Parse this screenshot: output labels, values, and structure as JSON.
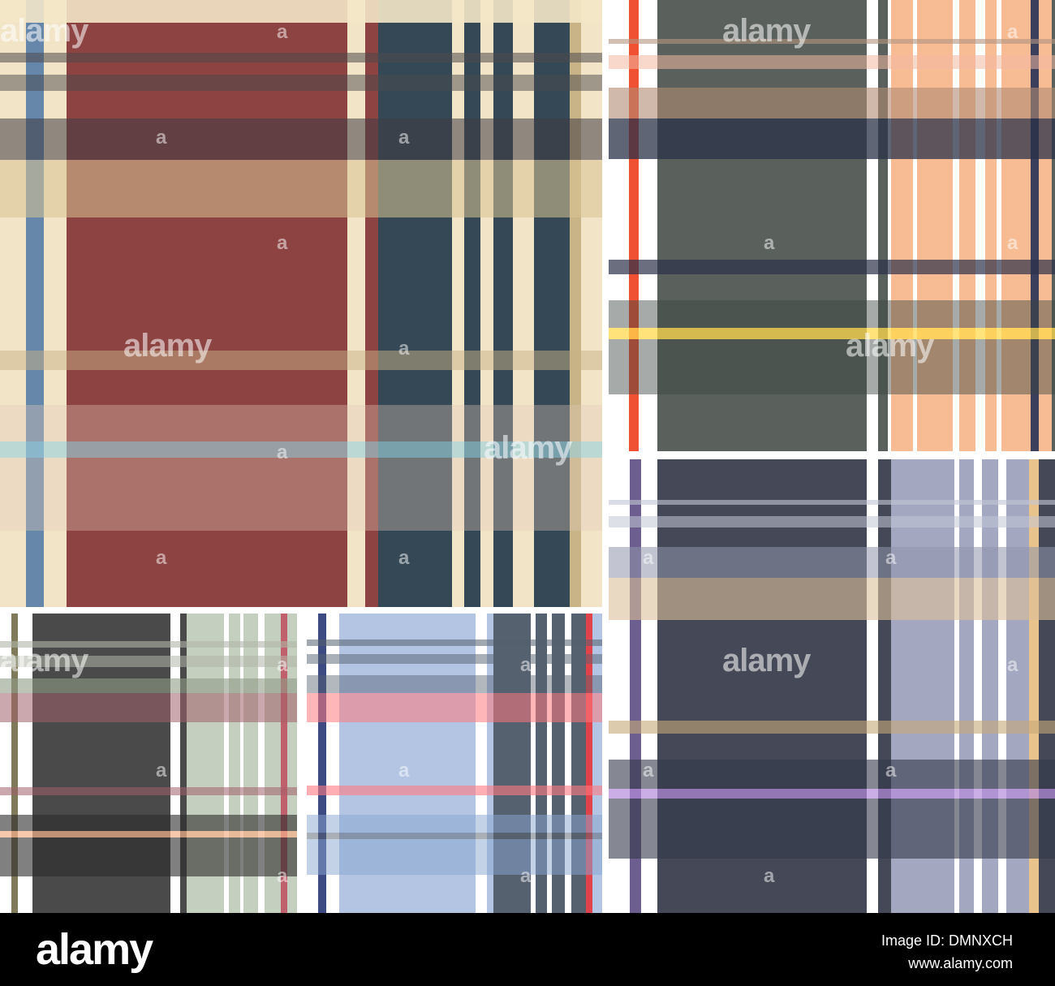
{
  "watermark": {
    "logo": "alamy",
    "glyph": "a"
  },
  "footer": {
    "logo": "alamy",
    "image_id": "Image ID: DMNXCH",
    "url": "www.alamy.com"
  },
  "panels": [
    {
      "name": "red-tartan",
      "bg": "#8c4341",
      "stripes": [
        {
          "d": "h",
          "a": 0,
          "b": 28,
          "c": "#f3e7c8",
          "o": 0.9
        },
        {
          "d": "h",
          "a": 65,
          "b": 77,
          "c": "#4e4a4c",
          "o": 0.55
        },
        {
          "d": "h",
          "a": 92,
          "b": 112,
          "c": "#4a4a4e",
          "o": 0.5
        },
        {
          "d": "h",
          "a": 146,
          "b": 197,
          "c": "#3f3c44",
          "o": 0.55
        },
        {
          "d": "h",
          "a": 197,
          "b": 268,
          "c": "#d8c493",
          "o": 0.55
        },
        {
          "d": "h",
          "a": 432,
          "b": 456,
          "c": "#c7b287",
          "o": 0.5
        },
        {
          "d": "h",
          "a": 499,
          "b": 544,
          "c": "#e1ccb9",
          "o": 0.35
        },
        {
          "d": "h",
          "a": 544,
          "b": 564,
          "c": "#9ed1dc",
          "o": 0.65
        },
        {
          "d": "h",
          "a": 564,
          "b": 654,
          "c": "#e1ccb9",
          "o": 0.35
        },
        {
          "d": "v",
          "a": 0,
          "b": 32,
          "c": "#f2e4c6",
          "o": 1
        },
        {
          "d": "v",
          "a": 32,
          "b": 54,
          "c": "#6787aa",
          "o": 1
        },
        {
          "d": "v",
          "a": 54,
          "b": 82,
          "c": "#f2e4c6",
          "o": 1
        },
        {
          "d": "v",
          "a": 428,
          "b": 450,
          "c": "#f2e4c6",
          "o": 1
        },
        {
          "d": "v",
          "a": 466,
          "b": 557,
          "c": "#354855",
          "o": 1
        },
        {
          "d": "v",
          "a": 557,
          "b": 572,
          "c": "#f2e4c6",
          "o": 1
        },
        {
          "d": "v",
          "a": 572,
          "b": 592,
          "c": "#354855",
          "o": 1
        },
        {
          "d": "v",
          "a": 592,
          "b": 608,
          "c": "#f2e4c6",
          "o": 1
        },
        {
          "d": "v",
          "a": 608,
          "b": 632,
          "c": "#354855",
          "o": 1
        },
        {
          "d": "v",
          "a": 632,
          "b": 658,
          "c": "#f2e4c6",
          "o": 1
        },
        {
          "d": "v",
          "a": 658,
          "b": 702,
          "c": "#354855",
          "o": 1
        },
        {
          "d": "v",
          "a": 702,
          "b": 716,
          "c": "#c8b487",
          "o": 1
        },
        {
          "d": "v",
          "a": 716,
          "b": 742,
          "c": "#f2e4c6",
          "o": 1
        }
      ]
    },
    {
      "name": "green-peach-tartan",
      "bg": "#5a615c",
      "stripes": [
        {
          "d": "v",
          "a": 0,
          "b": 25,
          "c": "#ffffff",
          "o": 1
        },
        {
          "d": "v",
          "a": 25,
          "b": 37,
          "c": "#f05133",
          "o": 1
        },
        {
          "d": "v",
          "a": 37,
          "b": 60,
          "c": "#ffffff",
          "o": 1
        },
        {
          "d": "v",
          "a": 318,
          "b": 332,
          "c": "#ffffff",
          "o": 1
        },
        {
          "d": "v",
          "a": 344,
          "b": 348,
          "c": "#ffffff",
          "o": 1
        },
        {
          "d": "v",
          "a": 348,
          "b": 546,
          "c": "#f8bc94",
          "o": 1
        },
        {
          "d": "v",
          "a": 375,
          "b": 380,
          "c": "#ffffff",
          "o": 1
        },
        {
          "d": "v",
          "a": 424,
          "b": 432,
          "c": "#ffffff",
          "o": 1
        },
        {
          "d": "v",
          "a": 452,
          "b": 464,
          "c": "#ffffff",
          "o": 1
        },
        {
          "d": "v",
          "a": 478,
          "b": 484,
          "c": "#ffffff",
          "o": 1
        },
        {
          "d": "v",
          "a": 520,
          "b": 530,
          "c": "#3c3f5c",
          "o": 1
        },
        {
          "d": "h",
          "a": 48,
          "b": 54,
          "c": "#b29580",
          "o": 0.6
        },
        {
          "d": "h",
          "a": 68,
          "b": 85,
          "c": "#f0b8a0",
          "o": 0.55
        },
        {
          "d": "h",
          "a": 108,
          "b": 146,
          "c": "#b08a72",
          "o": 0.6
        },
        {
          "d": "h",
          "a": 146,
          "b": 196,
          "c": "#2b3148",
          "o": 0.75
        },
        {
          "d": "h",
          "a": 320,
          "b": 338,
          "c": "#2b3148",
          "o": 0.7
        },
        {
          "d": "h",
          "a": 370,
          "b": 404,
          "c": "#3a4540",
          "o": 0.45
        },
        {
          "d": "h",
          "a": 404,
          "b": 418,
          "c": "#ffd84c",
          "o": 0.75
        },
        {
          "d": "h",
          "a": 418,
          "b": 486,
          "c": "#3a4540",
          "o": 0.45
        }
      ]
    },
    {
      "name": "navy-lavender-tartan",
      "bg": "#454957",
      "stripes": [
        {
          "d": "v",
          "a": 0,
          "b": 26,
          "c": "#ffffff",
          "o": 1
        },
        {
          "d": "v",
          "a": 26,
          "b": 40,
          "c": "#6c5f8f",
          "o": 1
        },
        {
          "d": "v",
          "a": 40,
          "b": 60,
          "c": "#ffffff",
          "o": 1
        },
        {
          "d": "v",
          "a": 318,
          "b": 332,
          "c": "#ffffff",
          "o": 1
        },
        {
          "d": "v",
          "a": 348,
          "b": 528,
          "c": "#a3a7c0",
          "o": 1
        },
        {
          "d": "v",
          "a": 426,
          "b": 432,
          "c": "#ffffff",
          "o": 1
        },
        {
          "d": "v",
          "a": 450,
          "b": 460,
          "c": "#ffffff",
          "o": 1
        },
        {
          "d": "v",
          "a": 480,
          "b": 490,
          "c": "#ffffff",
          "o": 1
        },
        {
          "d": "v",
          "a": 518,
          "b": 530,
          "c": "#e8c48c",
          "o": 1
        },
        {
          "d": "h",
          "a": 50,
          "b": 56,
          "c": "#c3c7d6",
          "o": 0.6
        },
        {
          "d": "h",
          "a": 70,
          "b": 84,
          "c": "#c3c7d6",
          "o": 0.55
        },
        {
          "d": "h",
          "a": 108,
          "b": 146,
          "c": "#8f93ab",
          "o": 0.55
        },
        {
          "d": "h",
          "a": 146,
          "b": 198,
          "c": "#dcc09a",
          "o": 0.6
        },
        {
          "d": "h",
          "a": 322,
          "b": 338,
          "c": "#c7a878",
          "o": 0.6
        },
        {
          "d": "h",
          "a": 370,
          "b": 406,
          "c": "#34384a",
          "o": 0.6
        },
        {
          "d": "h",
          "a": 406,
          "b": 418,
          "c": "#b58bdc",
          "o": 0.7
        },
        {
          "d": "h",
          "a": 418,
          "b": 492,
          "c": "#34384a",
          "o": 0.6
        }
      ]
    },
    {
      "name": "charcoal-sage-tartan",
      "bg": "#4a4a4a",
      "stripes": [
        {
          "d": "v",
          "a": 0,
          "b": 14,
          "c": "#ffffff",
          "o": 1
        },
        {
          "d": "v",
          "a": 14,
          "b": 22,
          "c": "#7f7b5a",
          "o": 1
        },
        {
          "d": "v",
          "a": 22,
          "b": 40,
          "c": "#ffffff",
          "o": 1
        },
        {
          "d": "v",
          "a": 210,
          "b": 222,
          "c": "#ffffff",
          "o": 1
        },
        {
          "d": "v",
          "a": 230,
          "b": 366,
          "c": "#c5cfbf",
          "o": 1
        },
        {
          "d": "v",
          "a": 276,
          "b": 282,
          "c": "#ffffff",
          "o": 1
        },
        {
          "d": "v",
          "a": 296,
          "b": 300,
          "c": "#ffffff",
          "o": 1
        },
        {
          "d": "v",
          "a": 318,
          "b": 326,
          "c": "#ffffff",
          "o": 1
        },
        {
          "d": "v",
          "a": 346,
          "b": 354,
          "c": "#c0606c",
          "o": 1
        },
        {
          "d": "h",
          "a": 34,
          "b": 42,
          "c": "#b0b6a8",
          "o": 0.6
        },
        {
          "d": "h",
          "a": 52,
          "b": 66,
          "c": "#b0b6a8",
          "o": 0.55
        },
        {
          "d": "h",
          "a": 80,
          "b": 98,
          "c": "#8f9c88",
          "o": 0.6
        },
        {
          "d": "h",
          "a": 98,
          "b": 134,
          "c": "#a0606a",
          "o": 0.55
        },
        {
          "d": "h",
          "a": 214,
          "b": 224,
          "c": "#a0606a",
          "o": 0.55
        },
        {
          "d": "h",
          "a": 248,
          "b": 268,
          "c": "#2b2b2b",
          "o": 0.6
        },
        {
          "d": "h",
          "a": 268,
          "b": 276,
          "c": "#f5b08a",
          "o": 0.7
        },
        {
          "d": "h",
          "a": 276,
          "b": 324,
          "c": "#2b2b2b",
          "o": 0.6
        }
      ]
    },
    {
      "name": "blue-slate-tartan",
      "bg": "#b3c5e3",
      "stripes": [
        {
          "d": "v",
          "a": 0,
          "b": 14,
          "c": "#ffffff",
          "o": 1
        },
        {
          "d": "v",
          "a": 14,
          "b": 24,
          "c": "#3e4a82",
          "o": 1
        },
        {
          "d": "v",
          "a": 24,
          "b": 40,
          "c": "#ffffff",
          "o": 1
        },
        {
          "d": "v",
          "a": 208,
          "b": 222,
          "c": "#ffffff",
          "o": 1
        },
        {
          "d": "v",
          "a": 230,
          "b": 350,
          "c": "#566170",
          "o": 1
        },
        {
          "d": "v",
          "a": 276,
          "b": 282,
          "c": "#ffffff",
          "o": 1
        },
        {
          "d": "v",
          "a": 296,
          "b": 302,
          "c": "#ffffff",
          "o": 1
        },
        {
          "d": "v",
          "a": 318,
          "b": 326,
          "c": "#ffffff",
          "o": 1
        },
        {
          "d": "v",
          "a": 344,
          "b": 352,
          "c": "#e0444a",
          "o": 1
        },
        {
          "d": "h",
          "a": 32,
          "b": 40,
          "c": "#566170",
          "o": 0.55
        },
        {
          "d": "h",
          "a": 50,
          "b": 62,
          "c": "#566170",
          "o": 0.5
        },
        {
          "d": "h",
          "a": 76,
          "b": 98,
          "c": "#566170",
          "o": 0.45
        },
        {
          "d": "h",
          "a": 98,
          "b": 134,
          "c": "#ff7a80",
          "o": 0.55
        },
        {
          "d": "h",
          "a": 212,
          "b": 224,
          "c": "#ff7a80",
          "o": 0.6
        },
        {
          "d": "h",
          "a": 248,
          "b": 270,
          "c": "#8aa6d2",
          "o": 0.5
        },
        {
          "d": "h",
          "a": 270,
          "b": 278,
          "c": "#566170",
          "o": 0.5
        },
        {
          "d": "h",
          "a": 278,
          "b": 322,
          "c": "#8aa6d2",
          "o": 0.5
        }
      ]
    }
  ]
}
